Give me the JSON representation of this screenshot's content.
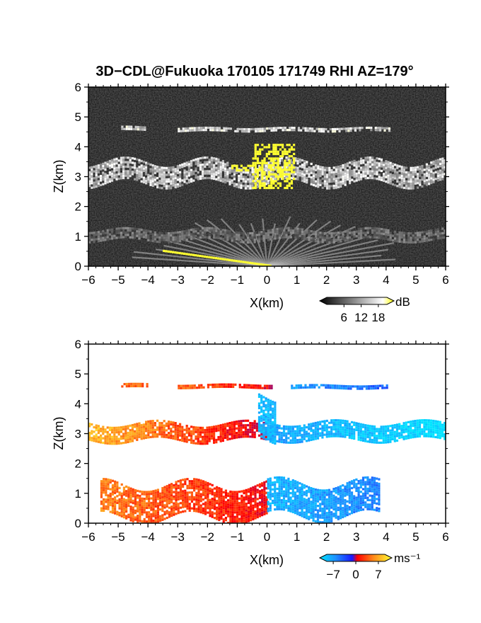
{
  "title": "3D−CDL@Fukuoka 170105 171749 RHI AZ=179°",
  "chart_data": [
    {
      "type": "heatmap",
      "variable": "backscatter",
      "xlabel": "X(km)",
      "ylabel": "Z(km)",
      "xlim": [
        -6,
        6
      ],
      "ylim": [
        0,
        6
      ],
      "xticks": [
        "−6",
        "−5",
        "−4",
        "−3",
        "−2",
        "−1",
        "0",
        "1",
        "2",
        "3",
        "4",
        "5",
        "6"
      ],
      "yticks": [
        "0",
        "1",
        "2",
        "3",
        "4",
        "5",
        "6"
      ],
      "background": "noise",
      "colorbar": {
        "unit": "dB",
        "ticks": [
          "6",
          "12",
          "18"
        ],
        "tick_values": [
          6,
          12,
          18
        ],
        "range": [
          0,
          21
        ],
        "colors": [
          "#000000",
          "#ffffff",
          "#ffff00"
        ]
      },
      "layers": [
        {
          "x": [
            -4.9,
            -4.1
          ],
          "z_center": 4.62,
          "thickness": 0.12,
          "level": 10
        },
        {
          "x": [
            -3,
            4.1
          ],
          "z_center": 4.6,
          "thickness": 0.1,
          "level": 10
        },
        {
          "x": [
            -6,
            6
          ],
          "z_center": 3.15,
          "thickness": 0.7,
          "level": 9
        },
        {
          "x": [
            -6,
            6
          ],
          "z_center": 1.05,
          "thickness": 0.35,
          "level": 5
        }
      ],
      "high_echo_regions": [
        {
          "x": [
            -0.5,
            0.9
          ],
          "z": [
            2.6,
            4.1
          ],
          "level": 19
        },
        {
          "x": [
            -1.2,
            -0.5
          ],
          "z": [
            3.2,
            3.4
          ],
          "level": 19
        },
        {
          "x": [
            -3.5,
            0.1
          ],
          "z": [
            0,
            0.55
          ],
          "level": 19
        }
      ]
    },
    {
      "type": "heatmap",
      "variable": "radial_velocity",
      "xlabel": "X(km)",
      "ylabel": "Z(km)",
      "xlim": [
        -6,
        6
      ],
      "ylim": [
        0,
        6
      ],
      "xticks": [
        "−6",
        "−5",
        "−4",
        "−3",
        "−2",
        "−1",
        "0",
        "1",
        "2",
        "3",
        "4",
        "5",
        "6"
      ],
      "yticks": [
        "0",
        "1",
        "2",
        "3",
        "4",
        "5",
        "6"
      ],
      "background": "white",
      "colorbar": {
        "unit": "ms⁻¹",
        "ticks": [
          "−7",
          "0",
          "7"
        ],
        "tick_values": [
          -7,
          0,
          7
        ],
        "range": [
          -9,
          9
        ],
        "colors": [
          "#00e5ff",
          "#1e90ff",
          "#1a1aff",
          "#ff0000",
          "#ff8c1a",
          "#ffff33"
        ]
      },
      "regions": [
        {
          "x": [
            -4.9,
            -4.0
          ],
          "z_center": 4.62,
          "thickness": 0.12,
          "v": [
            4.5,
            4.5
          ]
        },
        {
          "x": [
            -3.0,
            0.2
          ],
          "z_center": 4.6,
          "thickness": 0.12,
          "v": [
            4.5,
            1.5
          ]
        },
        {
          "x": [
            0.8,
            4.0
          ],
          "z_center": 4.58,
          "thickness": 0.12,
          "v": [
            -6,
            -4
          ]
        },
        {
          "x": [
            -6.0,
            0.0
          ],
          "z_center": 3.05,
          "thickness": 0.6,
          "v": [
            7,
            1
          ]
        },
        {
          "x": [
            0.0,
            6.0
          ],
          "z_center": 3.1,
          "thickness": 0.55,
          "v": [
            -6,
            -9
          ]
        },
        {
          "x": [
            -0.3,
            0.3
          ],
          "z_center": 3.6,
          "thickness": 1.4,
          "v": [
            -7,
            -7
          ]
        },
        {
          "x": [
            -5.6,
            0.0
          ],
          "z_center": 0.75,
          "thickness": 1.1,
          "v": [
            5,
            2
          ]
        },
        {
          "x": [
            0.0,
            3.8
          ],
          "z_center": 0.8,
          "thickness": 1.1,
          "v": [
            -7,
            -5
          ]
        }
      ]
    }
  ]
}
